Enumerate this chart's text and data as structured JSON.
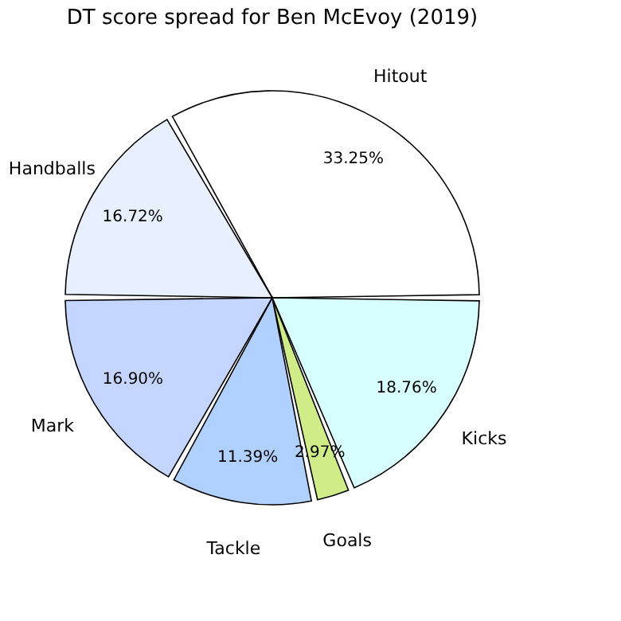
{
  "chart_data": {
    "type": "pie",
    "title": "DT score spread for Ben McEvoy (2019)",
    "categories": [
      "Hitout",
      "Handballs",
      "Mark",
      "Tackle",
      "Goals",
      "Kicks"
    ],
    "values": [
      33.25,
      16.72,
      16.9,
      11.39,
      2.97,
      18.76
    ],
    "value_labels": [
      "33.25%",
      "16.72%",
      "16.90%",
      "11.39%",
      "2.97%",
      "18.76%"
    ],
    "colors": [
      "#ffffff",
      "#e8f0ff",
      "#c4d6ff",
      "#b0d0ff",
      "#d0ec88",
      "#d8ffff"
    ],
    "legend": false
  }
}
